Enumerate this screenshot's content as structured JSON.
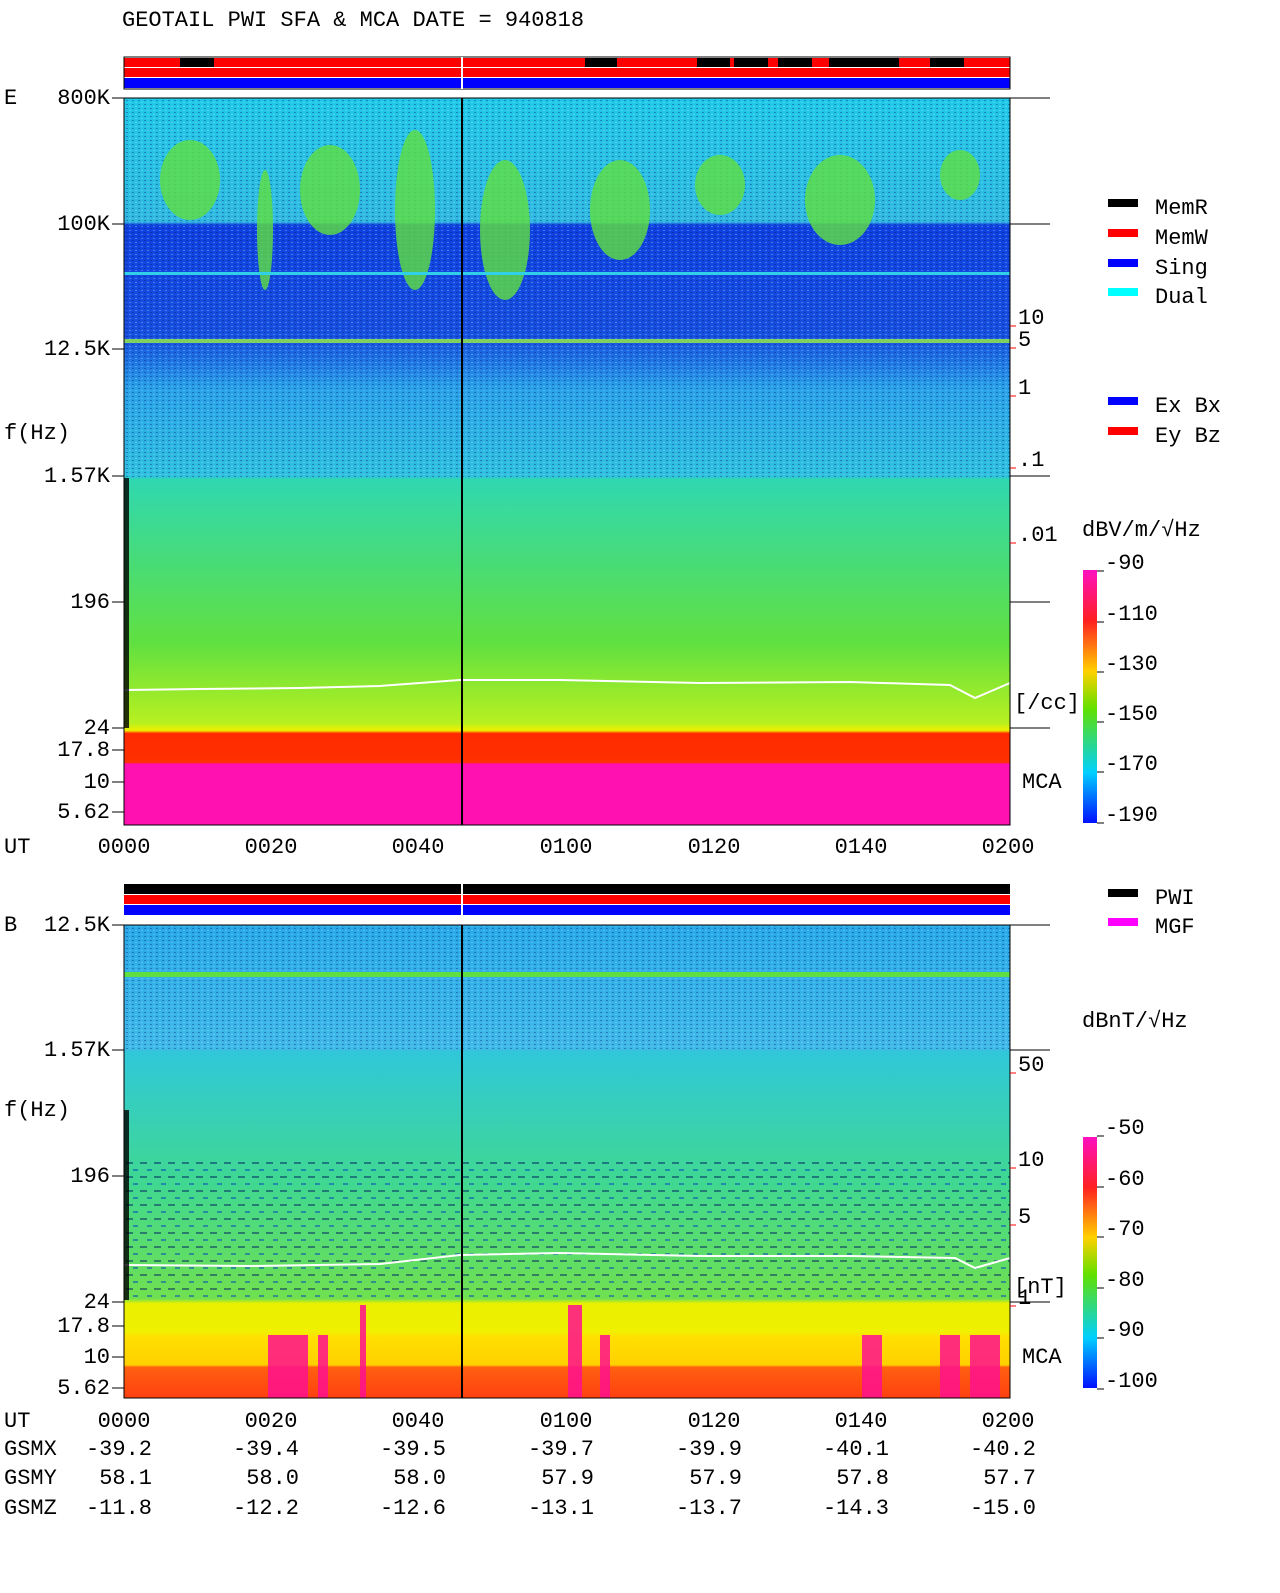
{
  "header": {
    "title": "GEOTAIL  PWI SFA & MCA   DATE = 940818"
  },
  "panels": [
    {
      "label": "E",
      "y_axis_label": "f(Hz)",
      "y_ticks": [
        "800K",
        "100K",
        "12.5K",
        "1.57K",
        "196",
        "24",
        "17.8",
        "10",
        "5.62"
      ],
      "density_ticks": [
        "10",
        "5",
        "1",
        ".1",
        ".01"
      ],
      "density_unit": "[/cc]",
      "mca_label": "MCA",
      "x_axis_label": "UT",
      "x_ticks": [
        "0000",
        "0020",
        "0040",
        "0100",
        "0120",
        "0140",
        "0200"
      ],
      "colorbar_label": "dBV/m/√Hz",
      "colorbar_ticks": [
        "-90",
        "-110",
        "-130",
        "-150",
        "-170",
        "-190"
      ],
      "legend": [
        {
          "label": "MemR",
          "color": "#000000"
        },
        {
          "label": "MemW",
          "color": "#ff0000"
        },
        {
          "label": "Sing",
          "color": "#0000ff"
        },
        {
          "label": "Dual",
          "color": "#00ffff"
        },
        {
          "label": "Ex Bx",
          "color": "#0000ff"
        },
        {
          "label": "Ey Bz",
          "color": "#ff0000"
        }
      ]
    },
    {
      "label": "B",
      "y_axis_label": "f(Hz)",
      "y_ticks": [
        "12.5K",
        "1.57K",
        "196",
        "24",
        "17.8",
        "10",
        "5.62"
      ],
      "density_ticks": [
        "50",
        "10",
        "5",
        "1"
      ],
      "density_unit": "[nT]",
      "mca_label": "MCA",
      "x_axis_label": "UT",
      "x_ticks": [
        "0000",
        "0020",
        "0040",
        "0100",
        "0120",
        "0140",
        "0200"
      ],
      "colorbar_label": "dBnT/√Hz",
      "colorbar_ticks": [
        "-50",
        "-60",
        "-70",
        "-80",
        "-90",
        "-100"
      ],
      "legend": [
        {
          "label": "PWI",
          "color": "#000000"
        },
        {
          "label": "MGF",
          "color": "#ff00ff"
        }
      ]
    }
  ],
  "ephemeris": {
    "rows": [
      {
        "label": "GSMX",
        "values": [
          "-39.2",
          "-39.4",
          "-39.5",
          "-39.7",
          "-39.9",
          "-40.1",
          "-40.2"
        ]
      },
      {
        "label": "GSMY",
        "values": [
          "58.1",
          "58.0",
          "58.0",
          "57.9",
          "57.9",
          "57.8",
          "57.7"
        ]
      },
      {
        "label": "GSMZ",
        "values": [
          "-11.8",
          "-12.2",
          "-12.6",
          "-13.1",
          "-13.7",
          "-14.3",
          "-15.0"
        ]
      }
    ]
  }
}
